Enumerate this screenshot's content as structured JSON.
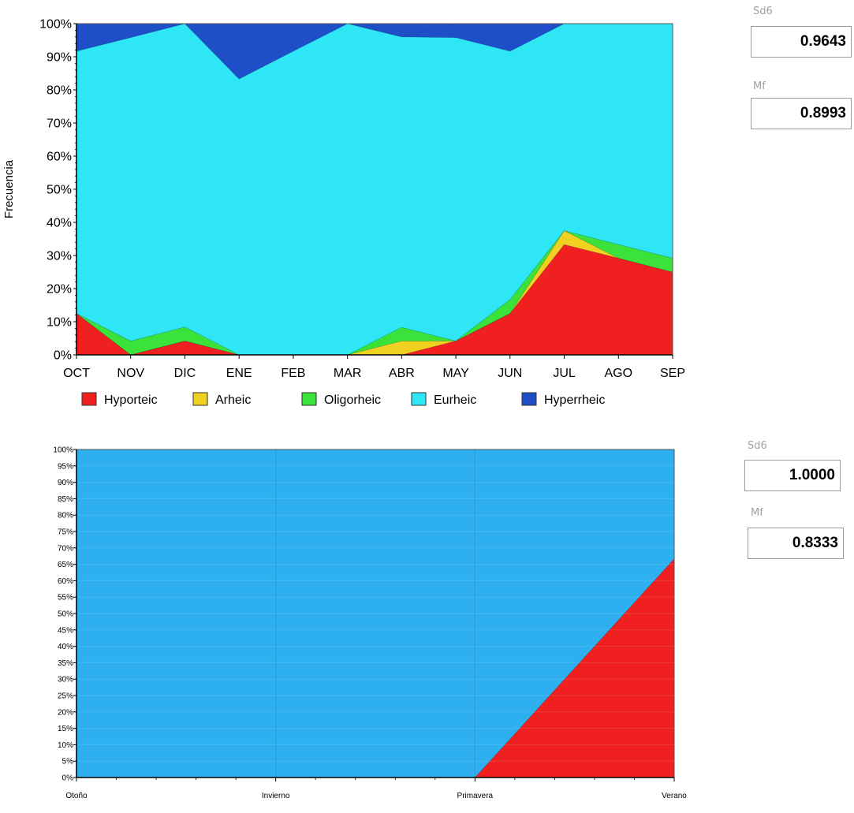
{
  "panels": [
    {
      "stats": [
        {
          "label": "Sd6",
          "value": "0.9643"
        },
        {
          "label": "Mf",
          "value": "0.8993"
        }
      ]
    },
    {
      "stats": [
        {
          "label": "Sd6",
          "value": "1.0000"
        },
        {
          "label": "Mf",
          "value": "0.8333"
        }
      ]
    }
  ],
  "chart_data": [
    {
      "type": "area",
      "stacked": true,
      "ylabel": "Frecuencia",
      "xlabel": "",
      "ylim": [
        0,
        100
      ],
      "y_ticks": [
        "0%",
        "10%",
        "20%",
        "30%",
        "40%",
        "50%",
        "60%",
        "70%",
        "80%",
        "90%",
        "100%"
      ],
      "x": [
        "OCT",
        "NOV",
        "DIC",
        "ENE",
        "FEB",
        "MAR",
        "ABR",
        "MAY",
        "JUN",
        "JUL",
        "AGO",
        "SEP"
      ],
      "legend_position": "bottom",
      "series": [
        {
          "name": "Hyporteic",
          "color": "#f02020",
          "values": [
            12.5,
            0,
            4.2,
            0,
            0,
            0,
            0,
            4.2,
            12.5,
            33.3,
            29.2,
            25
          ]
        },
        {
          "name": "Arheic",
          "color": "#f0d020",
          "values": [
            0,
            0,
            0,
            0,
            0,
            0,
            4.2,
            0,
            0,
            4.2,
            0,
            0
          ]
        },
        {
          "name": "Oligorheic",
          "color": "#3ae23a",
          "values": [
            0,
            4.2,
            4.2,
            0,
            0,
            0,
            4.1,
            0,
            4.2,
            0,
            4.1,
            4.2
          ]
        },
        {
          "name": "Eurheic",
          "color": "#2ee6f5",
          "values": [
            79.2,
            91.6,
            91.6,
            83.3,
            91.7,
            100,
            87.7,
            91.6,
            75,
            62.5,
            66.7,
            70.8
          ]
        },
        {
          "name": "Hyperrheic",
          "color": "#1f4fc8",
          "values": [
            8.3,
            4.2,
            0,
            16.7,
            8.3,
            0,
            0,
            4.2,
            8.3,
            0,
            0,
            0
          ]
        }
      ]
    },
    {
      "type": "area",
      "stacked": true,
      "ylim": [
        0,
        100
      ],
      "y_ticks": [
        "0%",
        "5%",
        "10%",
        "15%",
        "20%",
        "25%",
        "30%",
        "35%",
        "40%",
        "45%",
        "50%",
        "55%",
        "60%",
        "65%",
        "70%",
        "75%",
        "80%",
        "85%",
        "90%",
        "95%",
        "100%"
      ],
      "x": [
        "Otoño",
        "Invierno",
        "Primavera",
        "Verano"
      ],
      "series": [
        {
          "color": "#f02020",
          "values": [
            0,
            0,
            0,
            66.7
          ]
        },
        {
          "color": "#2eb0f0",
          "values": [
            100,
            100,
            100,
            33.3
          ]
        }
      ]
    }
  ]
}
